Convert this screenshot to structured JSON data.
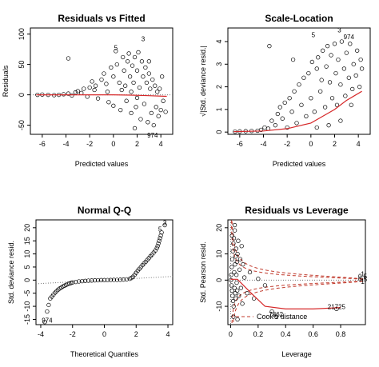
{
  "chart_data": [
    {
      "type": "scatter",
      "title": "Residuals vs Fitted",
      "xlabel": "Predicted values",
      "ylabel": "Residuals",
      "xlim": [
        -7,
        5
      ],
      "ylim": [
        -65,
        110
      ],
      "xticks": [
        -6,
        -4,
        -2,
        0,
        2,
        4
      ],
      "yticks": [
        -50,
        0,
        50,
        100
      ],
      "reference_line": {
        "y": 0,
        "style": "dotted",
        "color": "#777777"
      },
      "smoother": [
        [
          -6.5,
          0
        ],
        [
          -4,
          0
        ],
        [
          -2,
          0
        ],
        [
          0,
          0
        ],
        [
          1.5,
          -0.5
        ],
        [
          3,
          -1.5
        ],
        [
          4.5,
          -2.5
        ]
      ],
      "point_labels": [
        {
          "text": "3",
          "x": 2.5,
          "y": 88
        },
        {
          "text": "5",
          "x": 0.2,
          "y": 74
        },
        {
          "text": "974",
          "x": 3.3,
          "y": -70
        }
      ],
      "points": [
        [
          -6.4,
          0
        ],
        [
          -6.0,
          0.5
        ],
        [
          -5.5,
          0
        ],
        [
          -5.0,
          -0.5
        ],
        [
          -4.6,
          0
        ],
        [
          -4.2,
          1
        ],
        [
          -3.8,
          2
        ],
        [
          -3.5,
          -1
        ],
        [
          -3.2,
          4
        ],
        [
          -3.0,
          6
        ],
        [
          -2.7,
          3
        ],
        [
          -2.5,
          10
        ],
        [
          -2.2,
          -3
        ],
        [
          -2.0,
          12
        ],
        [
          -1.8,
          22
        ],
        [
          -1.5,
          15
        ],
        [
          -1.3,
          -6
        ],
        [
          -1.0,
          25
        ],
        [
          -0.8,
          35
        ],
        [
          -0.6,
          18
        ],
        [
          -0.4,
          -12
        ],
        [
          -0.2,
          45
        ],
        [
          0,
          30
        ],
        [
          0,
          -18
        ],
        [
          0.2,
          72
        ],
        [
          0.3,
          50
        ],
        [
          0.5,
          20
        ],
        [
          0.6,
          -25
        ],
        [
          0.8,
          62
        ],
        [
          0.9,
          40
        ],
        [
          1.0,
          15
        ],
        [
          1.1,
          -10
        ],
        [
          1.2,
          55
        ],
        [
          1.3,
          68
        ],
        [
          1.4,
          30
        ],
        [
          1.5,
          -30
        ],
        [
          1.6,
          48
        ],
        [
          1.7,
          20
        ],
        [
          1.8,
          62
        ],
        [
          1.9,
          -20
        ],
        [
          2.0,
          40
        ],
        [
          2.1,
          70
        ],
        [
          2.2,
          12
        ],
        [
          2.3,
          -40
        ],
        [
          2.4,
          55
        ],
        [
          2.5,
          30
        ],
        [
          2.6,
          -15
        ],
        [
          2.7,
          45
        ],
        [
          2.8,
          20
        ],
        [
          2.9,
          -45
        ],
        [
          3.0,
          35
        ],
        [
          3.1,
          10
        ],
        [
          3.2,
          -30
        ],
        [
          3.3,
          25
        ],
        [
          3.4,
          -50
        ],
        [
          3.5,
          15
        ],
        [
          3.6,
          -20
        ],
        [
          3.7,
          5
        ],
        [
          3.8,
          -35
        ],
        [
          3.9,
          10
        ],
        [
          4.0,
          -25
        ],
        [
          4.2,
          -10
        ],
        [
          4.4,
          -28
        ],
        [
          4.1,
          30
        ],
        [
          3.0,
          55
        ],
        [
          -3.8,
          60
        ],
        [
          1.8,
          -55
        ],
        [
          0.7,
          8
        ],
        [
          1.5,
          5
        ],
        [
          2.0,
          -5
        ],
        [
          -0.5,
          5
        ],
        [
          -1.6,
          8
        ]
      ]
    },
    {
      "type": "scatter",
      "title": "Scale-Location",
      "xlabel": "Predicted values",
      "ylabel": "√|Std. deviance resid.|",
      "xlim": [
        -7,
        5
      ],
      "ylim": [
        -0.1,
        4.6
      ],
      "xticks": [
        -6,
        -4,
        -2,
        0,
        2,
        4
      ],
      "yticks": [
        0,
        1,
        2,
        3,
        4
      ],
      "smoother": [
        [
          -6.5,
          0.02
        ],
        [
          -4,
          0.05
        ],
        [
          -2,
          0.15
        ],
        [
          0,
          0.4
        ],
        [
          1,
          0.7
        ],
        [
          2,
          1.0
        ],
        [
          3,
          1.4
        ],
        [
          4.3,
          1.8
        ]
      ],
      "point_labels": [
        {
          "text": "3",
          "x": 2.4,
          "y": 4.4
        },
        {
          "text": "5",
          "x": 0.2,
          "y": 4.2
        },
        {
          "text": "974",
          "x": 3.2,
          "y": 4.1
        }
      ],
      "points": [
        [
          -6.4,
          0.02
        ],
        [
          -6,
          0.03
        ],
        [
          -5.5,
          0.04
        ],
        [
          -5,
          0.05
        ],
        [
          -4.5,
          0.06
        ],
        [
          -4.2,
          0.1
        ],
        [
          -3.9,
          0.2
        ],
        [
          -3.6,
          0.15
        ],
        [
          -3.3,
          0.5
        ],
        [
          -3,
          0.3
        ],
        [
          -2.8,
          0.8
        ],
        [
          -2.6,
          1.1
        ],
        [
          -2.4,
          0.6
        ],
        [
          -2.2,
          1.3
        ],
        [
          -2,
          0.2
        ],
        [
          -1.8,
          1.5
        ],
        [
          -1.6,
          0.9
        ],
        [
          -1.4,
          1.8
        ],
        [
          -1.2,
          0.4
        ],
        [
          -1,
          2.1
        ],
        [
          -0.8,
          1.2
        ],
        [
          -0.6,
          2.4
        ],
        [
          -0.4,
          0.7
        ],
        [
          -0.2,
          2.6
        ],
        [
          0,
          1.5
        ],
        [
          0.1,
          3.1
        ],
        [
          0.3,
          0.9
        ],
        [
          0.5,
          2.8
        ],
        [
          0.6,
          3.3
        ],
        [
          0.8,
          1.8
        ],
        [
          0.9,
          2.3
        ],
        [
          1,
          3.6
        ],
        [
          1.2,
          1.1
        ],
        [
          1.3,
          2.9
        ],
        [
          1.4,
          3.8
        ],
        [
          1.6,
          2.2
        ],
        [
          1.7,
          3.4
        ],
        [
          1.8,
          1.5
        ],
        [
          2,
          3.9
        ],
        [
          2.1,
          2.6
        ],
        [
          2.2,
          1.2
        ],
        [
          2.3,
          3.2
        ],
        [
          2.5,
          2.1
        ],
        [
          2.6,
          4.0
        ],
        [
          2.8,
          2.8
        ],
        [
          2.9,
          1.6
        ],
        [
          3.0,
          3.5
        ],
        [
          3.2,
          2.4
        ],
        [
          3.3,
          3.9
        ],
        [
          3.5,
          1.9
        ],
        [
          3.6,
          3.0
        ],
        [
          3.8,
          2.5
        ],
        [
          3.9,
          3.6
        ],
        [
          4.1,
          2.0
        ],
        [
          4.2,
          3.2
        ],
        [
          4.3,
          2.8
        ],
        [
          -3.5,
          3.8
        ],
        [
          -1.5,
          3.2
        ],
        [
          1.5,
          0.3
        ],
        [
          2.5,
          0.5
        ],
        [
          0.5,
          0.2
        ],
        [
          3.4,
          1.2
        ]
      ]
    },
    {
      "type": "scatter",
      "title": "Normal Q-Q",
      "xlabel": "Theoretical Quantiles",
      "ylabel": "Std. deviance resid.",
      "xlim": [
        -4.3,
        4.3
      ],
      "ylim": [
        -17,
        23
      ],
      "xticks": [
        -4,
        -2,
        0,
        2,
        4
      ],
      "yticks": [
        -15,
        -10,
        -5,
        0,
        5,
        10,
        15,
        20
      ],
      "reference_line": {
        "points": [
          [
            -4.3,
            -1.4
          ],
          [
            4.3,
            1.4
          ]
        ],
        "style": "dotted",
        "color": "#777777"
      },
      "point_labels": [
        {
          "text": "3",
          "x": 3.8,
          "y": 21
        },
        {
          "text": "5",
          "x": 3.5,
          "y": 18.5
        },
        {
          "text": "974",
          "x": -3.6,
          "y": -16.3
        }
      ],
      "points": [
        [
          -3.75,
          -16
        ],
        [
          -3.6,
          -12
        ],
        [
          -3.5,
          -9.5
        ],
        [
          -3.4,
          -7
        ],
        [
          -3.3,
          -6.3
        ],
        [
          -3.2,
          -5.5
        ],
        [
          -3.1,
          -4.8
        ],
        [
          -3.0,
          -4.2
        ],
        [
          -2.9,
          -3.6
        ],
        [
          -2.8,
          -3.2
        ],
        [
          -2.7,
          -2.8
        ],
        [
          -2.6,
          -2.4
        ],
        [
          -2.5,
          -2.1
        ],
        [
          -2.4,
          -1.8
        ],
        [
          -2.3,
          -1.5
        ],
        [
          -2.2,
          -1.3
        ],
        [
          -2.1,
          -1.1
        ],
        [
          -2.0,
          -0.9
        ],
        [
          -1.8,
          -0.7
        ],
        [
          -1.6,
          -0.5
        ],
        [
          -1.4,
          -0.4
        ],
        [
          -1.2,
          -0.3
        ],
        [
          -1.0,
          -0.2
        ],
        [
          -0.8,
          -0.15
        ],
        [
          -0.6,
          -0.1
        ],
        [
          -0.4,
          -0.05
        ],
        [
          -0.2,
          0
        ],
        [
          0,
          0
        ],
        [
          0.2,
          0.02
        ],
        [
          0.4,
          0.05
        ],
        [
          0.6,
          0.08
        ],
        [
          0.8,
          0.1
        ],
        [
          1.0,
          0.15
        ],
        [
          1.2,
          0.2
        ],
        [
          1.4,
          0.3
        ],
        [
          1.6,
          0.5
        ],
        [
          1.7,
          0.8
        ],
        [
          1.8,
          1.3
        ],
        [
          1.9,
          2
        ],
        [
          2.0,
          2.8
        ],
        [
          2.1,
          3.6
        ],
        [
          2.2,
          4.3
        ],
        [
          2.3,
          5
        ],
        [
          2.4,
          5.7
        ],
        [
          2.5,
          6.4
        ],
        [
          2.6,
          7
        ],
        [
          2.7,
          7.7
        ],
        [
          2.8,
          8.4
        ],
        [
          2.9,
          9.1
        ],
        [
          3.0,
          9.8
        ],
        [
          3.1,
          10.5
        ],
        [
          3.2,
          11.3
        ],
        [
          3.3,
          12.2
        ],
        [
          3.35,
          13
        ],
        [
          3.4,
          14
        ],
        [
          3.45,
          15
        ],
        [
          3.5,
          16
        ],
        [
          3.55,
          17
        ],
        [
          3.6,
          18.2
        ],
        [
          3.8,
          21
        ]
      ]
    },
    {
      "type": "scatter",
      "title": "Residuals vs Leverage",
      "xlabel": "Leverage",
      "ylabel": "Std. Pearson resid.",
      "xlim": [
        -0.02,
        0.98
      ],
      "ylim": [
        -17,
        23
      ],
      "xticks": [
        0.0,
        0.2,
        0.4,
        0.6,
        0.8
      ],
      "yticks": [
        -10,
        0,
        10,
        20
      ],
      "legend": {
        "text": "Cook's distance",
        "placement": "bottom-left"
      },
      "point_labels": [
        {
          "text": "21725",
          "x": 0.77,
          "y": -11
        },
        {
          "text": "7862",
          "x": 0.33,
          "y": -14
        },
        {
          "text": "1",
          "x": 0.96,
          "y": 1.5
        },
        {
          "text": "0.5",
          "x": 0.96,
          "y": 0.5
        },
        {
          "text": "0.5",
          "x": 0.96,
          "y": -0.5
        },
        {
          "text": "1",
          "x": 0.96,
          "y": -1.5
        }
      ],
      "smoother": [
        [
          0,
          0.3
        ],
        [
          0.05,
          0.3
        ],
        [
          0.15,
          -5
        ],
        [
          0.25,
          -10
        ],
        [
          0.4,
          -11
        ],
        [
          0.6,
          -11
        ],
        [
          0.8,
          -10.5
        ]
      ],
      "points": [
        [
          0.002,
          0
        ],
        [
          0.004,
          2
        ],
        [
          0.006,
          -2
        ],
        [
          0.008,
          5
        ],
        [
          0.01,
          -4
        ],
        [
          0.012,
          8
        ],
        [
          0.014,
          -6
        ],
        [
          0.016,
          11
        ],
        [
          0.018,
          -8
        ],
        [
          0.02,
          14
        ],
        [
          0.022,
          -10
        ],
        [
          0.024,
          16
        ],
        [
          0.026,
          3
        ],
        [
          0.028,
          -3
        ],
        [
          0.03,
          19
        ],
        [
          0.032,
          6
        ],
        [
          0.034,
          -5
        ],
        [
          0.036,
          9
        ],
        [
          0.038,
          -7
        ],
        [
          0.04,
          12
        ],
        [
          0.042,
          2
        ],
        [
          0.044,
          -1
        ],
        [
          0.046,
          7
        ],
        [
          0.048,
          -4
        ],
        [
          0.05,
          10
        ],
        [
          0.055,
          15
        ],
        [
          0.06,
          -6
        ],
        [
          0.065,
          4
        ],
        [
          0.07,
          8
        ],
        [
          0.075,
          -3
        ],
        [
          0.08,
          13
        ],
        [
          0.085,
          -9
        ],
        [
          0.09,
          6
        ],
        [
          0.1,
          1
        ],
        [
          0.12,
          -5
        ],
        [
          0.14,
          3
        ],
        [
          0.17,
          -7
        ],
        [
          0.2,
          0.5
        ],
        [
          0.25,
          -2
        ],
        [
          0.3,
          -12
        ],
        [
          0.33,
          -14
        ],
        [
          0.77,
          -11
        ],
        [
          0.05,
          -15
        ],
        [
          0.02,
          -14
        ],
        [
          0.03,
          21
        ],
        [
          0.01,
          17
        ]
      ]
    }
  ]
}
